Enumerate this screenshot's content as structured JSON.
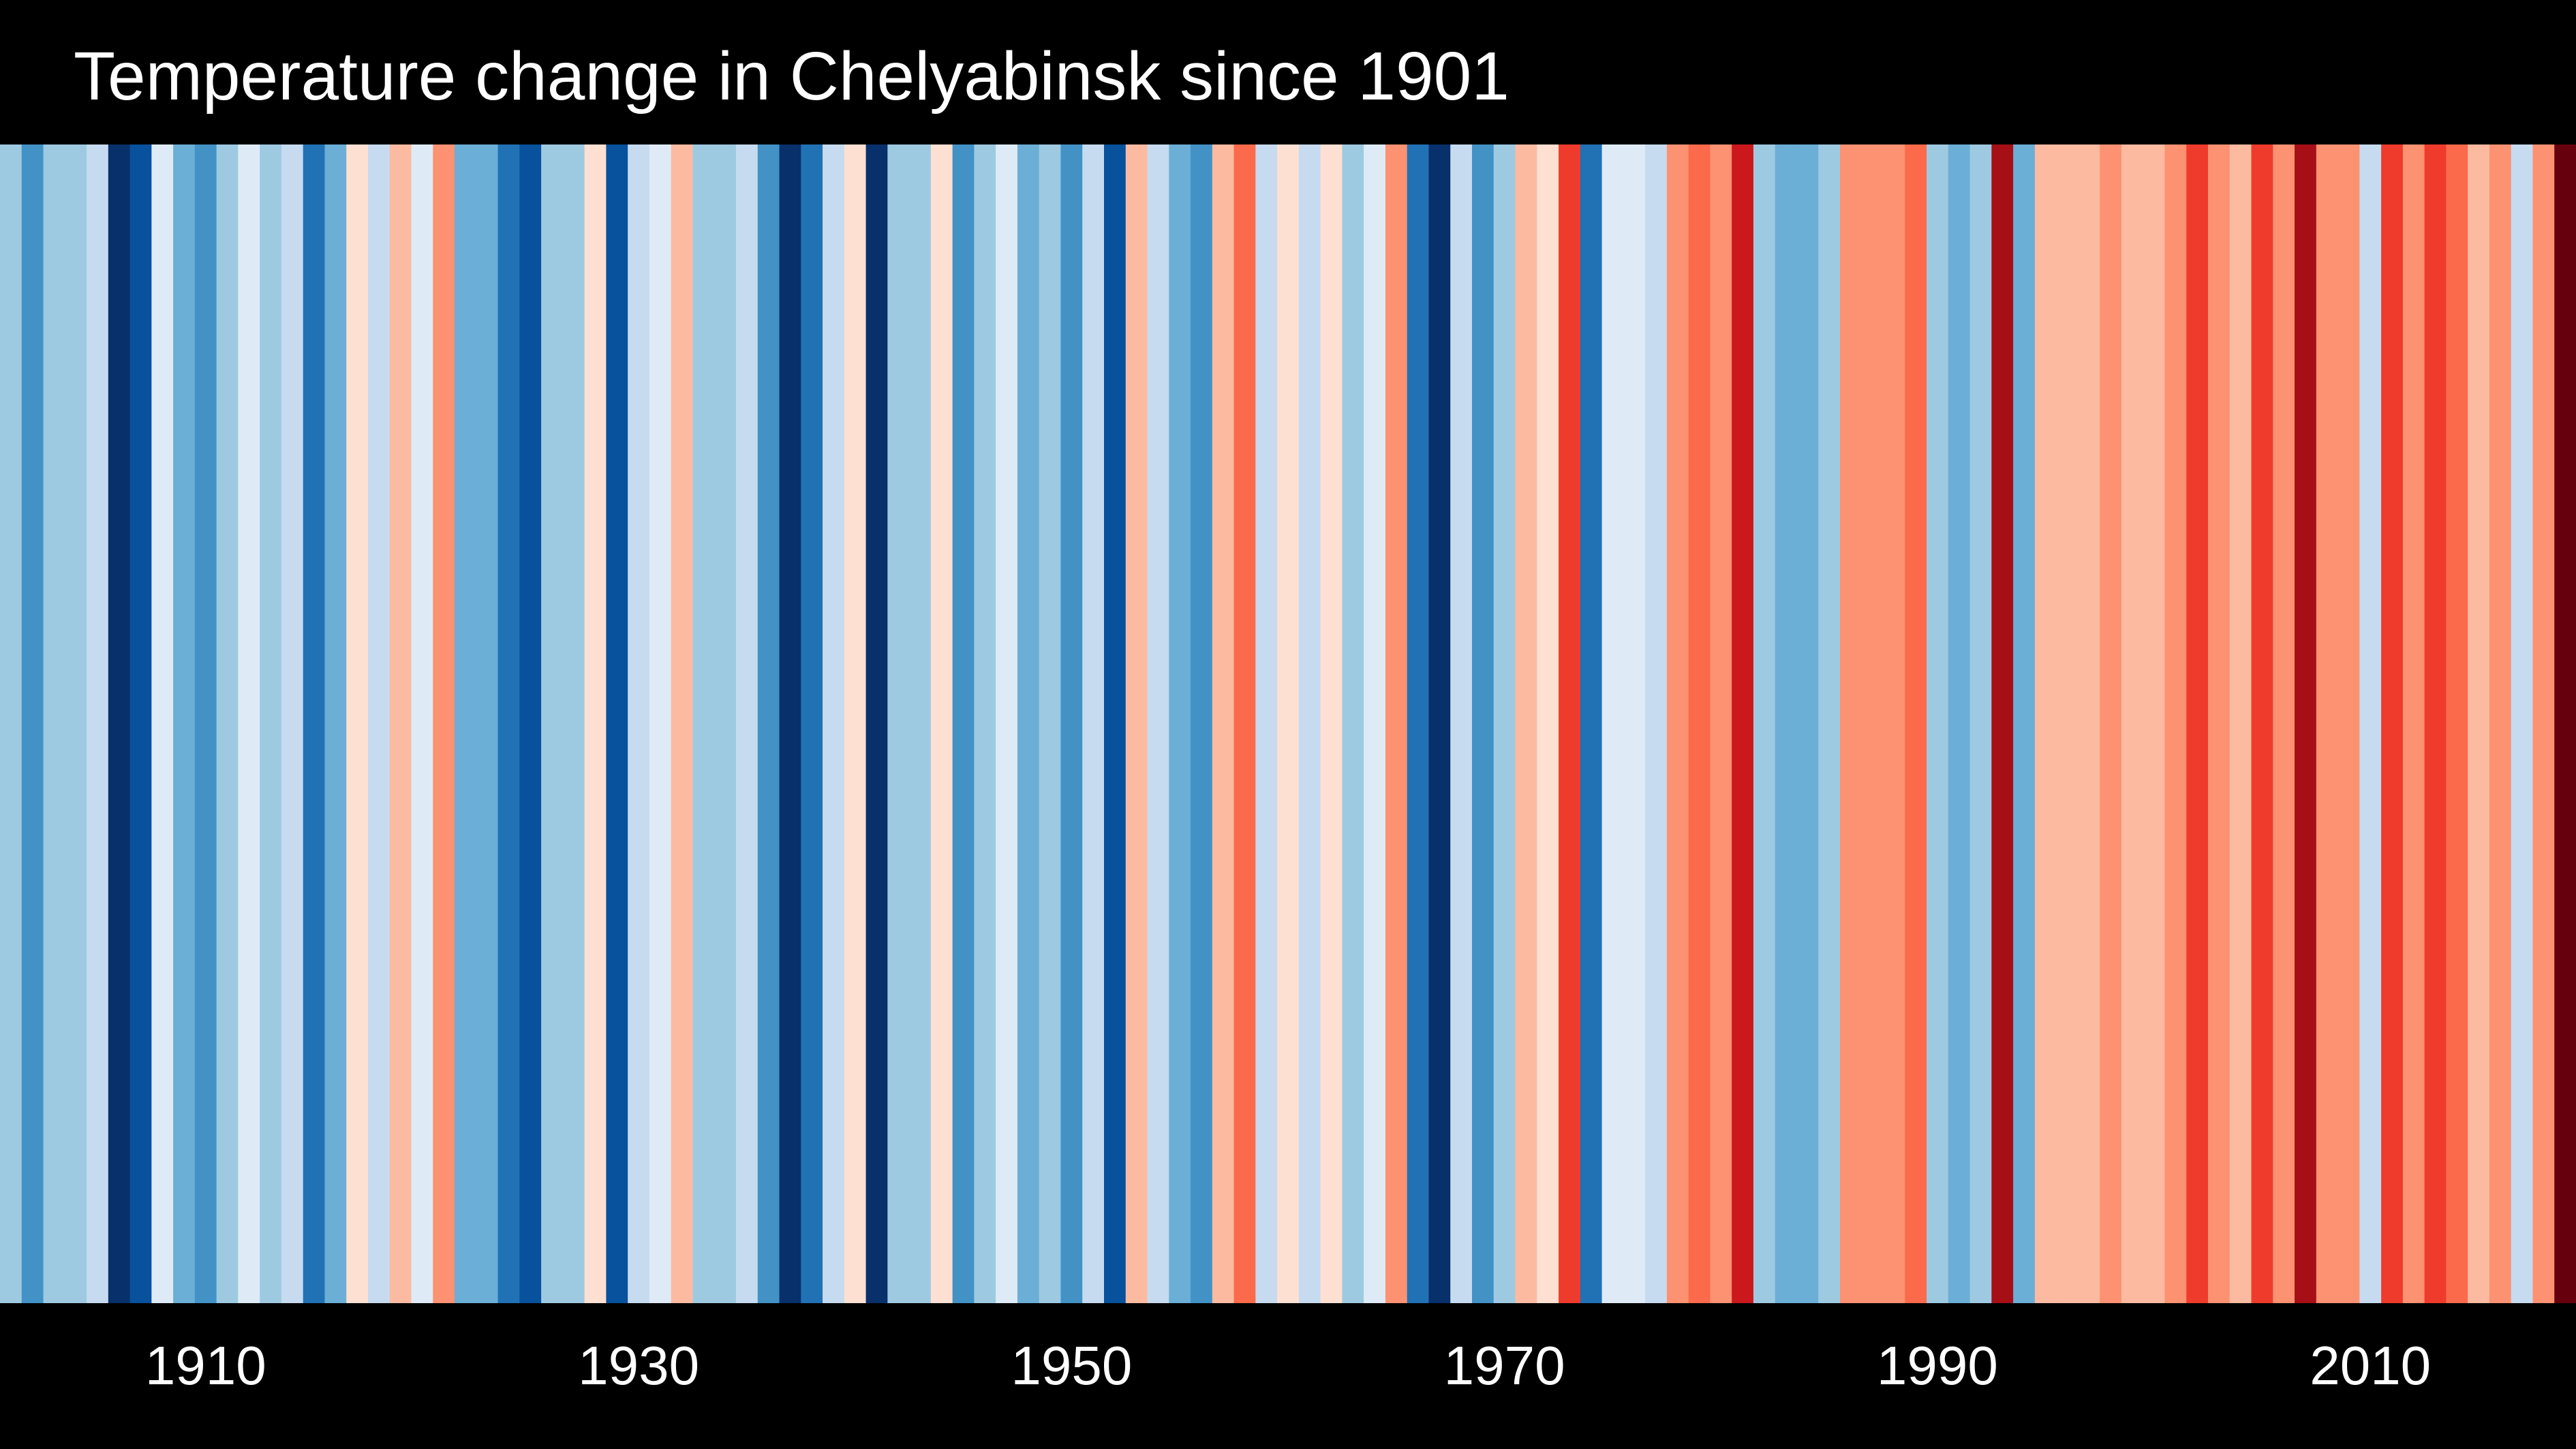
{
  "chart_data": {
    "type": "bar",
    "title": "Temperature change in Chelyabinsk since 1901",
    "x_start": 1901,
    "x_end": 2019,
    "xticks": [
      1910,
      1930,
      1950,
      1970,
      1990,
      2010
    ],
    "colors": [
      "#9ecae1",
      "#4292c6",
      "#9ecae1",
      "#9ecae1",
      "#c6dbef",
      "#08306b",
      "#08519c",
      "#deebf7",
      "#6baed6",
      "#4292c6",
      "#9ecae1",
      "#deebf7",
      "#9ecae1",
      "#c6dbef",
      "#2171b5",
      "#6baed6",
      "#fee0d2",
      "#c6dbef",
      "#fcbba1",
      "#deebf7",
      "#fc9272",
      "#6baed6",
      "#6baed6",
      "#2171b5",
      "#08519c",
      "#9ecae1",
      "#9ecae1",
      "#fee0d2",
      "#08519c",
      "#c6dbef",
      "#deebf7",
      "#fcbba1",
      "#9ecae1",
      "#9ecae1",
      "#c6dbef",
      "#4292c6",
      "#08306b",
      "#2171b5",
      "#c6dbef",
      "#fee0d2",
      "#08306b",
      "#9ecae1",
      "#9ecae1",
      "#fee0d2",
      "#4292c6",
      "#9ecae1",
      "#deebf7",
      "#6baed6",
      "#9ecae1",
      "#4292c6",
      "#c6dbef",
      "#08519c",
      "#fcbba1",
      "#c6dbef",
      "#6baed6",
      "#4292c6",
      "#fcbba1",
      "#fb6a4a",
      "#c6dbef",
      "#fee0d2",
      "#c6dbef",
      "#fee0d2",
      "#9ecae1",
      "#deebf7",
      "#fc9272",
      "#2171b5",
      "#08306b",
      "#c6dbef",
      "#4292c6",
      "#9ecae1",
      "#fcbba1",
      "#fee0d2",
      "#ef3b2c",
      "#2171b5",
      "#deebf7",
      "#deebf7",
      "#c6dbef",
      "#fc9272",
      "#fb6a4a",
      "#fc9272",
      "#cb181d",
      "#9ecae1",
      "#6baed6",
      "#6baed6",
      "#9ecae1",
      "#fc9272",
      "#fc9272",
      "#fc9272",
      "#fb6a4a",
      "#9ecae1",
      "#6baed6",
      "#9ecae1",
      "#a50f15",
      "#6baed6",
      "#fcbba1",
      "#fcbba1",
      "#fcbba1",
      "#fc9272",
      "#fcbba1",
      "#fcbba1",
      "#fc9272",
      "#ef3b2c",
      "#fc9272",
      "#fcbba1",
      "#ef3b2c",
      "#fc9272",
      "#a50f15",
      "#fc9272",
      "#fc9272",
      "#c6dbef",
      "#ef3b2c",
      "#fc9272",
      "#ef3b2c",
      "#fb6a4a",
      "#fcbba1",
      "#fc9272",
      "#c6dbef",
      "#fc9272",
      "#67000d"
    ]
  }
}
